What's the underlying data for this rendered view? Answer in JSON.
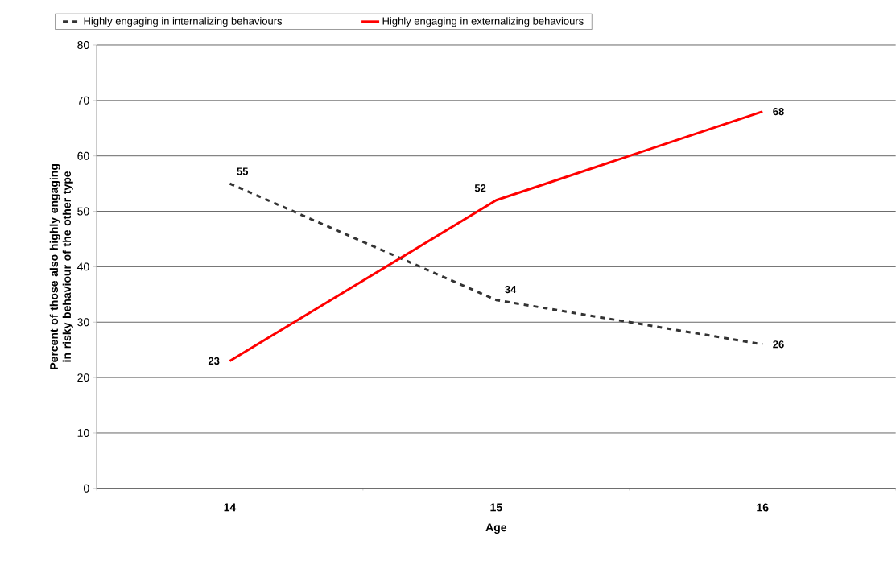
{
  "chart_data": {
    "type": "line",
    "xlabel": "Age",
    "ylabel": "Percent of those also highly engaging in risky behaviour of the other type",
    "categories": [
      "14",
      "15",
      "16"
    ],
    "series": [
      {
        "name": "Highly engaging in internalizing behaviours",
        "color": "#333333",
        "line_style": "dashed",
        "values": [
          55,
          34,
          26
        ]
      },
      {
        "name": "Highly engaging in externalizing behaviours",
        "color": "#ff0000",
        "line_style": "solid",
        "values": [
          23,
          52,
          68
        ]
      }
    ],
    "ylim": [
      0,
      80
    ],
    "yticks": [
      0,
      10,
      20,
      30,
      40,
      50,
      60,
      70,
      80
    ],
    "grid": "y",
    "legend": "top",
    "data_labels": true,
    "marker": "none"
  }
}
